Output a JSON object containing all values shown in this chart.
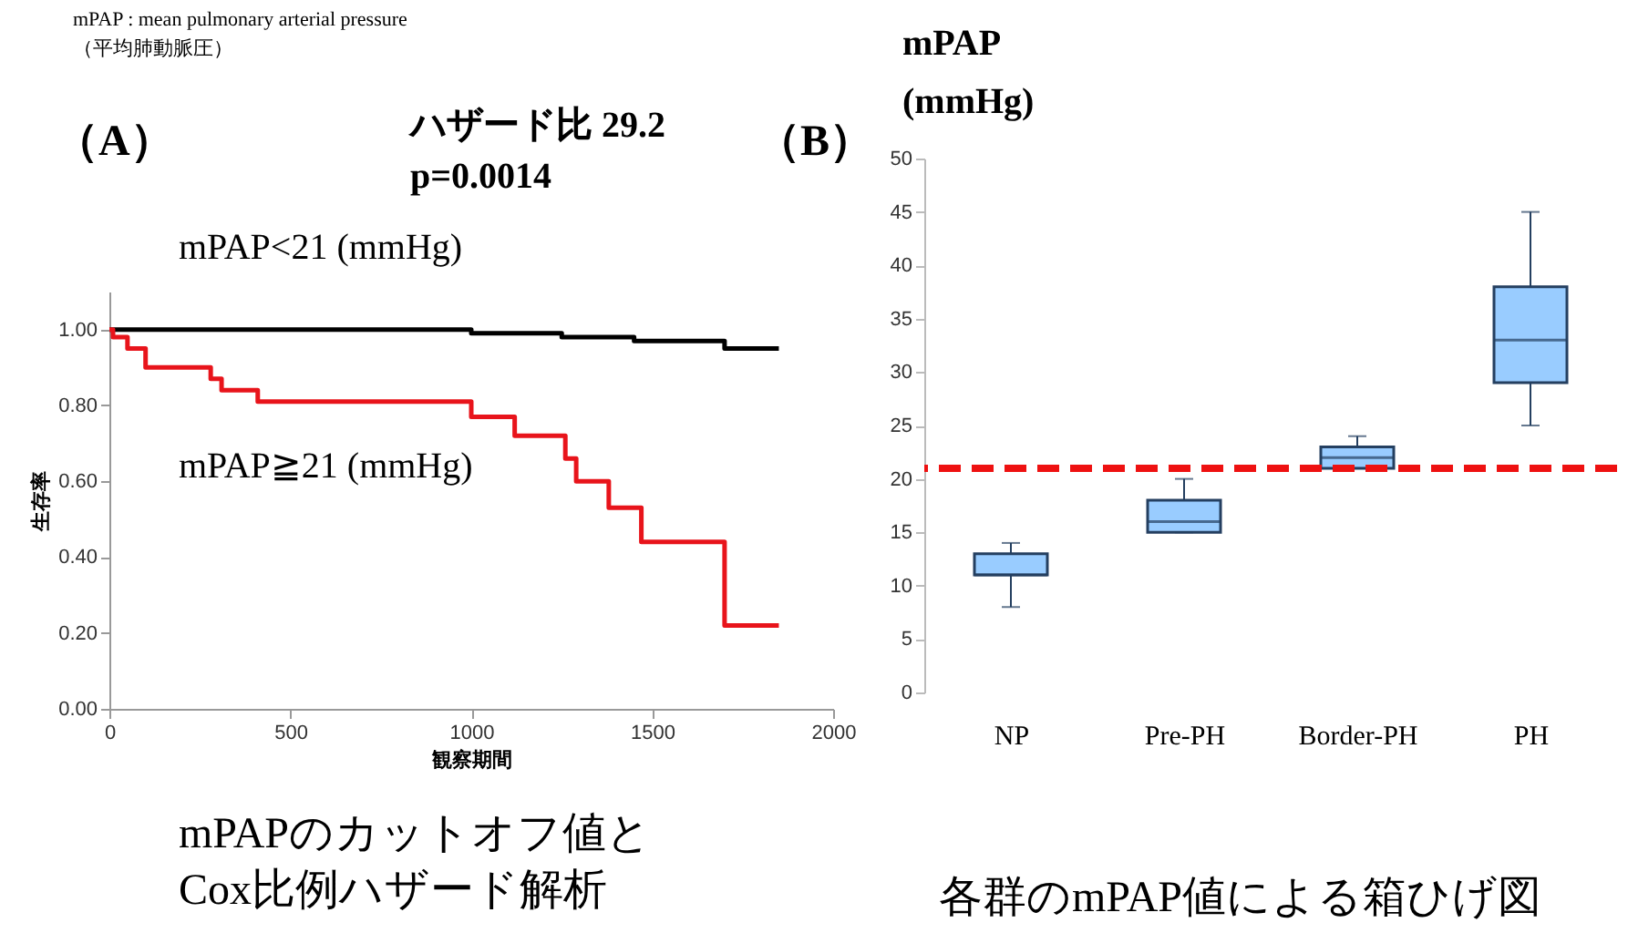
{
  "chart_data": [
    {
      "type": "step",
      "title": "（A）",
      "xlabel": "観察期間",
      "ylabel": "生存率",
      "annotations": [
        "mPAP : mean pulmonary arterial pressure",
        "（平均肺動脈圧）",
        "ハザード比 29.2",
        "p=0.0014",
        "mPAPのカットオフ値と\nCox比例ハザード解析"
      ],
      "xlim": [
        0,
        2000
      ],
      "xticks": [
        0,
        500,
        1000,
        1500,
        2000
      ],
      "ylim": [
        0,
        1.1
      ],
      "yticks": [
        {
          "value": 0,
          "label": "0.00"
        },
        {
          "value": 0.2,
          "label": "0.20"
        },
        {
          "value": 0.4,
          "label": "0.40"
        },
        {
          "value": 0.6,
          "label": "0.60"
        },
        {
          "value": 0.8,
          "label": "0.80"
        },
        {
          "value": 1,
          "label": "1.00"
        }
      ],
      "grid": false,
      "series": [
        {
          "name": "mPAP<21 (mmHg)",
          "color": "#000000",
          "x": [
            0,
            1000,
            1250,
            1450,
            1700,
            1850
          ],
          "values": [
            1.0,
            0.99,
            0.98,
            0.97,
            0.95,
            0.95
          ]
        },
        {
          "name": "mPAP≧21 (mmHg)",
          "color": "#e8141b",
          "x": [
            0,
            10,
            50,
            100,
            280,
            310,
            410,
            1000,
            1120,
            1260,
            1290,
            1380,
            1470,
            1700,
            1850
          ],
          "values": [
            1.0,
            0.98,
            0.95,
            0.9,
            0.87,
            0.84,
            0.81,
            0.77,
            0.72,
            0.66,
            0.6,
            0.53,
            0.44,
            0.22,
            0.22
          ]
        }
      ]
    },
    {
      "type": "box",
      "title": "（B）",
      "ylabel": "mPAP\n(mmHg)",
      "annotations": [
        "各群のmPAP値による箱ひげ図"
      ],
      "categories": [
        "NP",
        "Pre-PH",
        "Border-PH",
        "PH"
      ],
      "ylim": [
        0,
        50
      ],
      "yticks": [
        0,
        5,
        10,
        15,
        20,
        25,
        30,
        35,
        40,
        45,
        50
      ],
      "grid": false,
      "ref_lines": [
        {
          "axis": "y",
          "value": 21,
          "color": "#ee1111",
          "line_style": "dashed"
        }
      ],
      "series": [
        {
          "color": "#99ccff",
          "boxes": [
            {
              "low": 8,
              "q1": 11,
              "median": 11,
              "q3": 13,
              "high": 14
            },
            {
              "low": 15,
              "q1": 15,
              "median": 16,
              "q3": 18,
              "high": 20
            },
            {
              "low": 21,
              "q1": 21,
              "median": 22,
              "q3": 23,
              "high": 24
            },
            {
              "low": 25,
              "q1": 29,
              "median": 33,
              "q3": 38,
              "high": 45
            }
          ]
        }
      ]
    }
  ]
}
